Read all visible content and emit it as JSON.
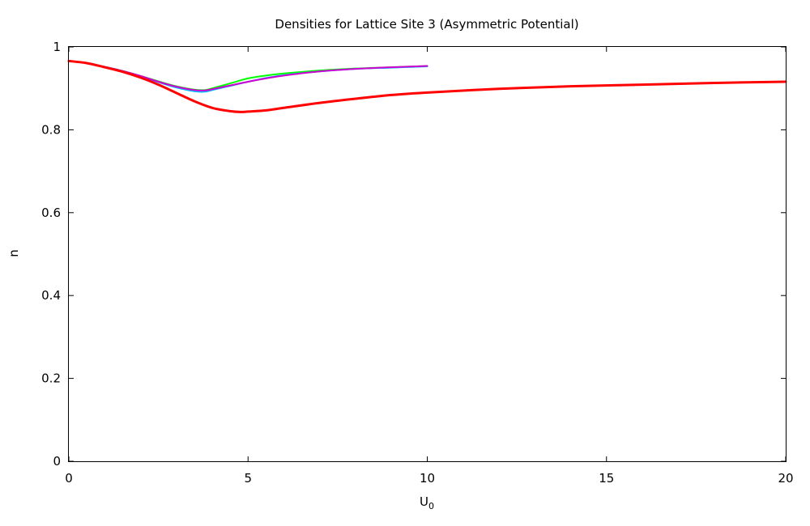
{
  "chart_data": {
    "type": "line",
    "title": "Densities for Lattice Site 3 (Asymmetric Potential)",
    "xlabel_main": "U",
    "xlabel_sub": "0",
    "ylabel": "n",
    "xlim": [
      0,
      20
    ],
    "ylim": [
      0,
      1
    ],
    "xticks": [
      0,
      5,
      10,
      15,
      20
    ],
    "yticks": [
      0,
      0.2,
      0.4,
      0.6,
      0.8,
      1
    ],
    "ytick_labels": [
      "0",
      "0.2",
      "0.4",
      "0.6",
      "0.8",
      "1"
    ],
    "grid": false,
    "legend": "none",
    "series": [
      {
        "color": "#00ff00",
        "x": [
          0,
          0.5,
          1,
          1.5,
          2,
          2.5,
          3,
          3.5,
          3.8,
          4,
          4.5,
          5,
          5.5,
          6,
          7,
          8,
          9,
          10
        ],
        "y": [
          0.966,
          0.961,
          0.952,
          0.942,
          0.93,
          0.917,
          0.905,
          0.897,
          0.896,
          0.9,
          0.912,
          0.924,
          0.931,
          0.936,
          0.943,
          0.948,
          0.951,
          0.954
        ]
      },
      {
        "color": "#00c0ff",
        "x": [
          0,
          0.5,
          1,
          1.5,
          2,
          2.5,
          3,
          3.5,
          3.8,
          4,
          4.5,
          5,
          5.5,
          6,
          7,
          8,
          9,
          10
        ],
        "y": [
          0.966,
          0.961,
          0.952,
          0.942,
          0.929,
          0.915,
          0.902,
          0.893,
          0.892,
          0.896,
          0.906,
          0.916,
          0.925,
          0.932,
          0.941,
          0.947,
          0.95,
          0.953
        ]
      },
      {
        "color": "#d000d0",
        "x": [
          0,
          0.5,
          1,
          1.5,
          2,
          2.5,
          3,
          3.5,
          3.8,
          4,
          4.5,
          5,
          5.5,
          6,
          7,
          8,
          9,
          10
        ],
        "y": [
          0.966,
          0.961,
          0.952,
          0.942,
          0.93,
          0.916,
          0.904,
          0.896,
          0.895,
          0.898,
          0.907,
          0.916,
          0.924,
          0.931,
          0.941,
          0.947,
          0.951,
          0.954
        ]
      },
      {
        "color": "#ff0000",
        "x": [
          0,
          0.5,
          1,
          1.5,
          2,
          2.5,
          3,
          3.5,
          4,
          4.5,
          4.8,
          5,
          5.5,
          6,
          7,
          8,
          9,
          10,
          12,
          14,
          16,
          18,
          20
        ],
        "y": [
          0.966,
          0.961,
          0.951,
          0.94,
          0.926,
          0.909,
          0.889,
          0.869,
          0.853,
          0.845,
          0.843,
          0.844,
          0.847,
          0.853,
          0.865,
          0.875,
          0.884,
          0.89,
          0.899,
          0.905,
          0.909,
          0.913,
          0.916
        ]
      }
    ]
  }
}
